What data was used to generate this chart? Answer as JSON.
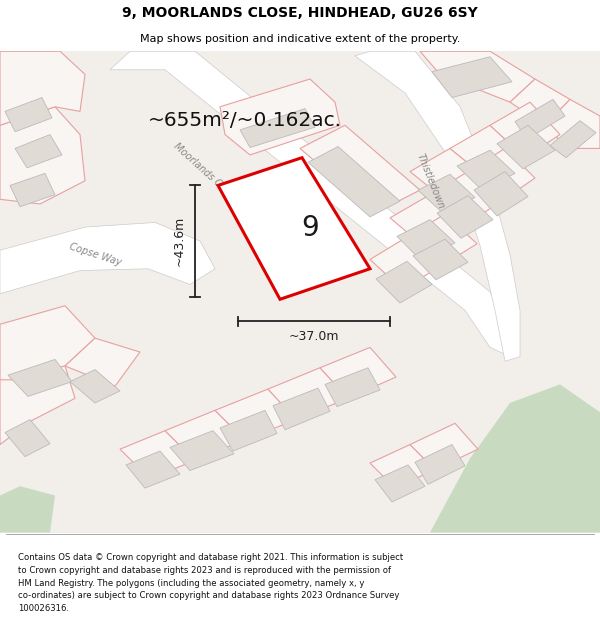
{
  "title_line1": "9, MOORLANDS CLOSE, HINDHEAD, GU26 6SY",
  "title_line2": "Map shows position and indicative extent of the property.",
  "area_text": "~655m²/~0.162ac.",
  "label_9": "9",
  "dim_width": "~37.0m",
  "dim_height": "~43.6m",
  "footer": "Contains OS data © Crown copyright and database right 2021. This information is subject to Crown copyright and database rights 2023 and is reproduced with the permission of\nHM Land Registry. The polygons (including the associated geometry, namely x, y\nco-ordinates) are subject to Crown copyright and database rights 2023 Ordnance Survey\n100026316.",
  "map_bg": "#f2eeea",
  "road_color": "#ffffff",
  "boundary_color": "#e8a0a0",
  "building_color": "#e0dbd5",
  "plot_outline_color": "#dd0000",
  "plot_fill": "#ffffff",
  "green_color": "#c8dac0",
  "footer_bg": "#ffffff",
  "title_bg": "#ffffff",
  "road_label_color": "#888888",
  "dim_line_color": "#222222"
}
